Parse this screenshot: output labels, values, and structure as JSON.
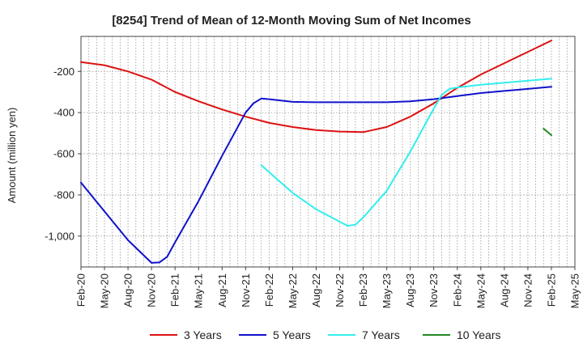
{
  "chart_data": {
    "type": "line",
    "title": "[8254]  Trend of Mean of 12-Month Moving Sum of Net Incomes",
    "ylabel": "Amount (million yen)",
    "xlabel": "",
    "ylim": [
      -1150,
      -30
    ],
    "y_ticks": [
      {
        "value": -200,
        "label": "-200"
      },
      {
        "value": -400,
        "label": "-400"
      },
      {
        "value": -600,
        "label": "-600"
      },
      {
        "value": -800,
        "label": "-800"
      },
      {
        "value": -1000,
        "label": "-1,000"
      }
    ],
    "x_ticks": [
      "Feb-20",
      "May-20",
      "Aug-20",
      "Nov-20",
      "Feb-21",
      "May-21",
      "Aug-21",
      "Nov-21",
      "Feb-22",
      "May-22",
      "Aug-22",
      "Nov-22",
      "Feb-23",
      "May-23",
      "Aug-23",
      "Nov-23",
      "Feb-24",
      "May-24",
      "Aug-24",
      "Nov-24",
      "Feb-25",
      "May-25"
    ],
    "grid": true,
    "legend_position": "bottom",
    "series": [
      {
        "name": "3 Years",
        "color": "#dd1111",
        "points": [
          [
            "Feb-20",
            -155
          ],
          [
            "May-20",
            -170
          ],
          [
            "Aug-20",
            -200
          ],
          [
            "Nov-20",
            -240
          ],
          [
            "Feb-21",
            -300
          ],
          [
            "May-21",
            -345
          ],
          [
            "Aug-21",
            -385
          ],
          [
            "Nov-21",
            -420
          ],
          [
            "Feb-22",
            -450
          ],
          [
            "May-22",
            -470
          ],
          [
            "Aug-22",
            -485
          ],
          [
            "Nov-22",
            -492
          ],
          [
            "Feb-23",
            -495
          ],
          [
            "May-23",
            -470
          ],
          [
            "Aug-23",
            -420
          ],
          [
            "Nov-23",
            -355
          ],
          [
            "Feb-24",
            -280
          ],
          [
            "May-24",
            -215
          ],
          [
            "Aug-24",
            -160
          ],
          [
            "Nov-24",
            -105
          ],
          [
            "Feb-25",
            -50
          ]
        ]
      },
      {
        "name": "5 Years",
        "color": "#1111cc",
        "points": [
          [
            "Feb-20",
            -740
          ],
          [
            "May-20",
            -880
          ],
          [
            "Aug-20",
            -1020
          ],
          [
            "Nov-20",
            -1130
          ],
          [
            "Dec-20",
            -1128
          ],
          [
            "Jan-21",
            -1100
          ],
          [
            "Feb-21",
            -1030
          ],
          [
            "May-21",
            -830
          ],
          [
            "Aug-21",
            -610
          ],
          [
            "Nov-21",
            -400
          ],
          [
            "Dec-21",
            -355
          ],
          [
            "Jan-22",
            -332
          ],
          [
            "Feb-22",
            -335
          ],
          [
            "May-22",
            -348
          ],
          [
            "Aug-22",
            -350
          ],
          [
            "Nov-22",
            -350
          ],
          [
            "Feb-23",
            -350
          ],
          [
            "May-23",
            -350
          ],
          [
            "Aug-23",
            -345
          ],
          [
            "Nov-23",
            -335
          ],
          [
            "Feb-24",
            -320
          ],
          [
            "May-24",
            -305
          ],
          [
            "Aug-24",
            -295
          ],
          [
            "Nov-24",
            -285
          ],
          [
            "Feb-25",
            -275
          ]
        ]
      },
      {
        "name": "7 Years",
        "color": "#33eeee",
        "points": [
          [
            "Jan-22",
            -655
          ],
          [
            "Feb-22",
            -690
          ],
          [
            "May-22",
            -790
          ],
          [
            "Aug-22",
            -870
          ],
          [
            "Nov-22",
            -930
          ],
          [
            "Dec-22",
            -950
          ],
          [
            "Jan-23",
            -945
          ],
          [
            "Feb-23",
            -910
          ],
          [
            "May-23",
            -780
          ],
          [
            "Aug-23",
            -590
          ],
          [
            "Nov-23",
            -380
          ],
          [
            "Dec-23",
            -315
          ],
          [
            "Jan-24",
            -285
          ],
          [
            "Feb-24",
            -278
          ],
          [
            "May-24",
            -265
          ],
          [
            "Aug-24",
            -255
          ],
          [
            "Nov-24",
            -245
          ],
          [
            "Feb-25",
            -235
          ]
        ]
      },
      {
        "name": "10 Years",
        "color": "#228822",
        "points": [
          [
            "Jan-25",
            -478
          ],
          [
            "Feb-25",
            -510
          ]
        ]
      }
    ]
  }
}
